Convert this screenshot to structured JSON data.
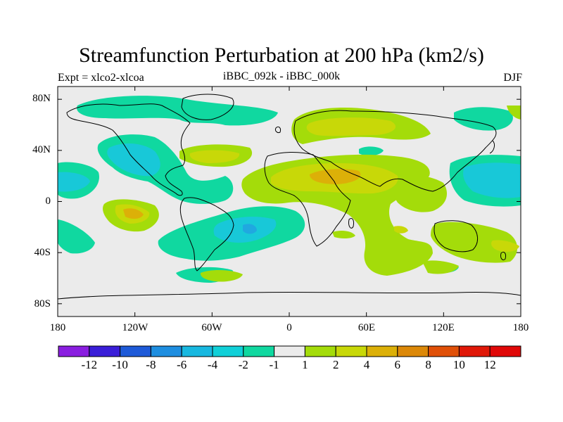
{
  "title": "Streamfunction Perturbation at 200 hPa (km2/s)",
  "subtitle_left": "Expt = xlco2-xlcoa",
  "subtitle_center": "iBBC_092k - iBBC_000k",
  "subtitle_right": "DJF",
  "lat_labels": [
    "80N",
    "40N",
    "0",
    "40S",
    "80S"
  ],
  "lon_labels": [
    "180",
    "120W",
    "60W",
    "0",
    "60E",
    "120E",
    "180"
  ],
  "colorbar": {
    "labels": [
      "-12",
      "-10",
      "-8",
      "-6",
      "-4",
      "-2",
      "-1",
      "1",
      "2",
      "4",
      "6",
      "8",
      "10",
      "12"
    ],
    "colors": [
      "#8a1ee0",
      "#3a1ed8",
      "#1e5ad8",
      "#1e8ee0",
      "#18b8e0",
      "#10d0d8",
      "#10d8a0",
      "#ebebeb",
      "#a4dc0a",
      "#c8d808",
      "#dcb008",
      "#dc8808",
      "#e05008",
      "#e01808",
      "#e00808"
    ]
  },
  "colors": {
    "background": "#ebebeb",
    "neg_light": "#10d8a0",
    "neg_mid": "#18c8d8",
    "neg_strong": "#20a8e0",
    "pos_light": "#a4dc0a",
    "pos_mid": "#c8d808",
    "pos_strong": "#dcb008",
    "pos_stronger": "#dc9810"
  }
}
